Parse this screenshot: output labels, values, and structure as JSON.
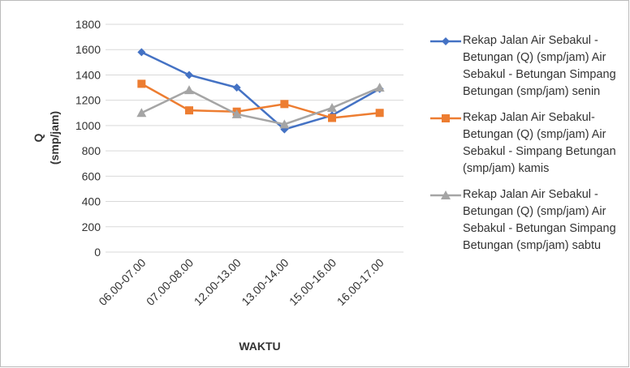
{
  "chart_data": {
    "type": "line",
    "categories": [
      "06.00-07.00",
      "07.00-08.00",
      "12.00-13.00",
      "13.00-14.00",
      "15.00-16.00",
      "16.00-17.00"
    ],
    "series": [
      {
        "name": "Rekap Jalan Air Sebakul - Betungan (Q) (smp/jam) Air Sebakul - Betungan Simpang Betungan (smp/jam) senin",
        "color": "#4472c4",
        "marker": "diamond",
        "values": [
          1580,
          1400,
          1300,
          970,
          1080,
          1290
        ]
      },
      {
        "name": "Rekap Jalan Air Sebakul- Betungan (Q) (smp/jam) Air Sebakul - Simpang Betungan (smp/jam) kamis",
        "color": "#ed7d31",
        "marker": "square",
        "values": [
          1330,
          1120,
          1110,
          1170,
          1060,
          1100
        ]
      },
      {
        "name": "Rekap Jalan Air Sebakul - Betungan (Q) (smp/jam) Air Sebakul - Betungan Simpang Betungan (smp/jam) sabtu",
        "color": "#a5a5a5",
        "marker": "triangle",
        "values": [
          1100,
          1280,
          1090,
          1010,
          1140,
          1300
        ]
      }
    ],
    "ylabel": [
      "Q",
      "(smp/jam)"
    ],
    "xlabel": "WAKTU",
    "ylim": [
      0,
      1800
    ],
    "yticks": [
      0,
      200,
      400,
      600,
      800,
      1000,
      1200,
      1400,
      1600,
      1800
    ],
    "grid": true,
    "legend": "right"
  }
}
